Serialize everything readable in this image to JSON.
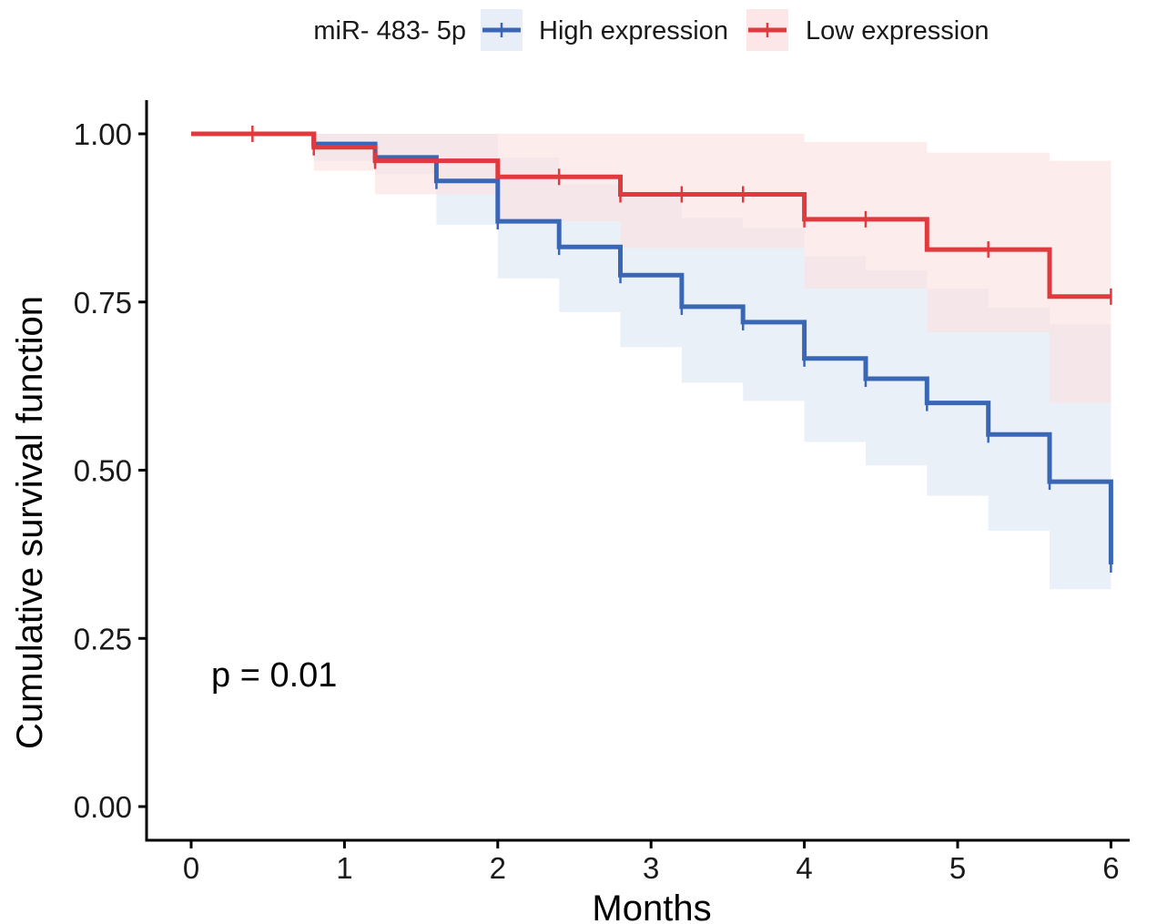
{
  "chart_data": {
    "type": "line",
    "subtype": "kaplan-meier",
    "xlabel": "Months",
    "ylabel": "Cumulative survival function",
    "xlim": [
      0,
      6
    ],
    "ylim": [
      0,
      1
    ],
    "x_ticks": [
      "0",
      "1",
      "2",
      "3",
      "4",
      "5",
      "6"
    ],
    "y_ticks": [
      "0.00",
      "0.25",
      "0.50",
      "0.75",
      "1.00"
    ],
    "grid": false,
    "legend": {
      "title": "miR- 483- 5p",
      "position": "top"
    },
    "annotation": "p = 0.01",
    "series": [
      {
        "name": "High expression",
        "color": "#3a67b5",
        "band_color": "#dce6f3",
        "steps": [
          [
            0,
            1.0
          ],
          [
            0.8,
            0.985
          ],
          [
            1.2,
            0.965
          ],
          [
            1.6,
            0.93
          ],
          [
            2.0,
            0.87
          ],
          [
            2.4,
            0.832
          ],
          [
            2.8,
            0.79
          ],
          [
            3.2,
            0.743
          ],
          [
            3.6,
            0.72
          ],
          [
            4.0,
            0.666
          ],
          [
            4.4,
            0.636
          ],
          [
            4.8,
            0.6
          ],
          [
            5.2,
            0.553
          ],
          [
            5.6,
            0.483
          ],
          [
            6.0,
            0.36
          ]
        ],
        "lower": [
          [
            0,
            1.0
          ],
          [
            0.8,
            0.96
          ],
          [
            1.2,
            0.94
          ],
          [
            1.6,
            0.865
          ],
          [
            2.0,
            0.785
          ],
          [
            2.4,
            0.735
          ],
          [
            2.8,
            0.683
          ],
          [
            3.2,
            0.63
          ],
          [
            3.6,
            0.603
          ],
          [
            4.0,
            0.542
          ],
          [
            4.4,
            0.507
          ],
          [
            4.8,
            0.462
          ],
          [
            5.2,
            0.41
          ],
          [
            5.6,
            0.323
          ],
          [
            6.0,
            0.323
          ]
        ],
        "upper": [
          [
            0,
            1.0
          ],
          [
            0.8,
            1.0
          ],
          [
            1.2,
            1.0
          ],
          [
            1.6,
            1.0
          ],
          [
            2.0,
            0.965
          ],
          [
            2.4,
            0.925
          ],
          [
            2.8,
            0.91
          ],
          [
            3.2,
            0.875
          ],
          [
            3.6,
            0.86
          ],
          [
            4.0,
            0.818
          ],
          [
            4.4,
            0.797
          ],
          [
            4.8,
            0.77
          ],
          [
            5.2,
            0.742
          ],
          [
            5.6,
            0.717
          ],
          [
            6.0,
            0.717
          ]
        ],
        "censor_times": [
          1.2,
          1.6,
          2.0,
          2.4,
          2.8,
          3.2,
          3.6,
          4.0,
          4.4,
          4.8,
          5.2,
          5.6,
          6.0
        ]
      },
      {
        "name": "Low expression",
        "color": "#e03a3e",
        "band_color": "#fbdfe0",
        "steps": [
          [
            0,
            1.0
          ],
          [
            0.8,
            0.98
          ],
          [
            1.2,
            0.96
          ],
          [
            2.0,
            0.936
          ],
          [
            2.8,
            0.91
          ],
          [
            4.0,
            0.873
          ],
          [
            4.8,
            0.828
          ],
          [
            5.6,
            0.758
          ],
          [
            6.0,
            0.758
          ]
        ],
        "lower": [
          [
            0,
            1.0
          ],
          [
            0.8,
            0.945
          ],
          [
            1.2,
            0.91
          ],
          [
            2.0,
            0.87
          ],
          [
            2.8,
            0.83
          ],
          [
            4.0,
            0.77
          ],
          [
            4.8,
            0.705
          ],
          [
            5.6,
            0.6
          ],
          [
            6.0,
            0.6
          ]
        ],
        "upper": [
          [
            0,
            1.0
          ],
          [
            0.8,
            1.0
          ],
          [
            1.2,
            1.0
          ],
          [
            2.0,
            1.0
          ],
          [
            2.8,
            1.0
          ],
          [
            4.0,
            0.988
          ],
          [
            4.8,
            0.972
          ],
          [
            5.6,
            0.96
          ],
          [
            6.0,
            0.96
          ]
        ],
        "censor_times": [
          0.4,
          0.8,
          1.2,
          2.4,
          2.8,
          3.2,
          3.6,
          4.0,
          4.4,
          5.2,
          6.0
        ]
      }
    ]
  }
}
